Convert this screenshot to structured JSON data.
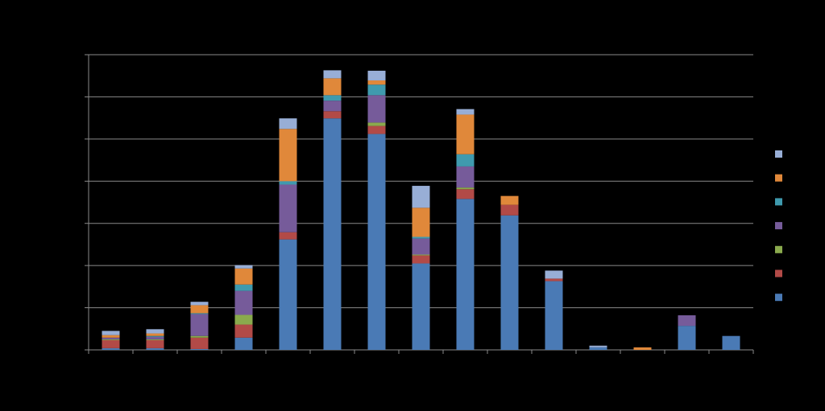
{
  "chart_data": {
    "type": "stacked_bar",
    "categories": [
      null,
      null,
      null,
      null,
      null,
      null,
      null,
      null,
      null,
      null,
      null,
      null,
      null,
      null,
      null
    ],
    "series": [
      {
        "color": "#4a7ab5",
        "values": [
          0.4,
          0.4,
          0.2,
          2.9,
          26.2,
          54.9,
          51.2,
          20.5,
          35.8,
          31.9,
          16.3,
          0.6,
          0,
          5.7,
          3.3
        ]
      },
      {
        "color": "#b24a47",
        "values": [
          1.9,
          1.9,
          2.7,
          3.1,
          1.7,
          1.7,
          1.9,
          1.9,
          2.3,
          2.5,
          0.6,
          0,
          0,
          0,
          0
        ]
      },
      {
        "color": "#8aaa4d",
        "values": [
          0.2,
          0.2,
          0.4,
          2.3,
          0,
          0,
          0.8,
          0.2,
          0.4,
          0,
          0,
          0,
          0,
          0,
          0
        ]
      },
      {
        "color": "#765b9a",
        "values": [
          0.4,
          0.6,
          5.2,
          5.7,
          11.3,
          2.5,
          6.5,
          3.8,
          5.0,
          0,
          0,
          0,
          0,
          2.5,
          0
        ]
      },
      {
        "color": "#3f9aae",
        "values": [
          0,
          0.2,
          0.2,
          1.5,
          0.8,
          1.3,
          2.5,
          0.4,
          2.9,
          0,
          0,
          0,
          0,
          0,
          0
        ]
      },
      {
        "color": "#e0883a",
        "values": [
          0.6,
          0.6,
          1.9,
          3.8,
          12.4,
          4.0,
          1.0,
          6.9,
          9.4,
          2.1,
          0,
          0,
          0.6,
          0,
          0
        ]
      },
      {
        "color": "#98aed6",
        "values": [
          1.0,
          1.0,
          0.8,
          0.8,
          2.5,
          1.9,
          2.3,
          5.2,
          1.3,
          0,
          1.9,
          0.4,
          0,
          0,
          0
        ]
      }
    ],
    "ylim": [
      0,
      70
    ],
    "yticks": [
      0,
      10,
      20,
      30,
      40,
      50,
      60,
      70
    ],
    "grid": true
  }
}
